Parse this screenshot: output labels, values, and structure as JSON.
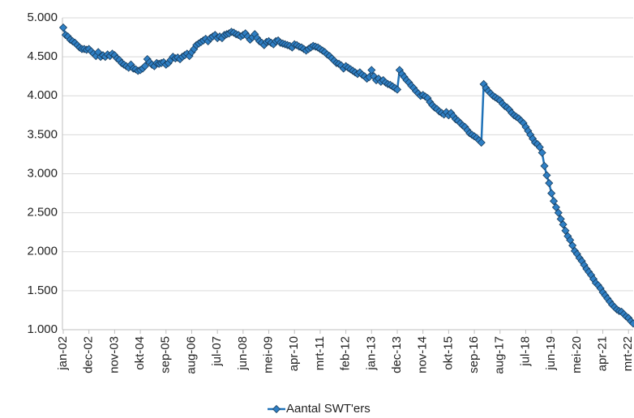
{
  "chart_data": {
    "type": "line",
    "categories": [
      "jan-02",
      null,
      null,
      null,
      null,
      null,
      null,
      null,
      null,
      null,
      null,
      "dec-02",
      null,
      null,
      null,
      null,
      null,
      null,
      null,
      null,
      null,
      null,
      "nov-03",
      null,
      null,
      null,
      null,
      null,
      null,
      null,
      null,
      null,
      null,
      "okt-04",
      null,
      null,
      null,
      null,
      null,
      null,
      null,
      null,
      null,
      null,
      "sep-05",
      null,
      null,
      null,
      null,
      null,
      null,
      null,
      null,
      null,
      null,
      "aug-06",
      null,
      null,
      null,
      null,
      null,
      null,
      null,
      null,
      null,
      null,
      "jul-07",
      null,
      null,
      null,
      null,
      null,
      null,
      null,
      null,
      null,
      null,
      "jun-08",
      null,
      null,
      null,
      null,
      null,
      null,
      null,
      null,
      null,
      null,
      "mei-09",
      null,
      null,
      null,
      null,
      null,
      null,
      null,
      null,
      null,
      null,
      "apr-10",
      null,
      null,
      null,
      null,
      null,
      null,
      null,
      null,
      null,
      null,
      "mrt-11",
      null,
      null,
      null,
      null,
      null,
      null,
      null,
      null,
      null,
      null,
      "feb-12",
      null,
      null,
      null,
      null,
      null,
      null,
      null,
      null,
      null,
      null,
      "jan-13",
      null,
      null,
      null,
      null,
      null,
      null,
      null,
      null,
      null,
      null,
      "dec-13",
      null,
      null,
      null,
      null,
      null,
      null,
      null,
      null,
      null,
      null,
      "nov-14",
      null,
      null,
      null,
      null,
      null,
      null,
      null,
      null,
      null,
      null,
      "okt-15",
      null,
      null,
      null,
      null,
      null,
      null,
      null,
      null,
      null,
      null,
      "sep-16",
      null,
      null,
      null,
      null,
      null,
      null,
      null,
      null,
      null,
      null,
      "aug-17",
      null,
      null,
      null,
      null,
      null,
      null,
      null,
      null,
      null,
      null,
      "jul-18",
      null,
      null,
      null,
      null,
      null,
      null,
      null,
      null,
      null,
      null,
      "jun-19",
      null,
      null,
      null,
      null,
      null,
      null,
      null,
      null,
      null,
      null,
      "mei-20",
      null,
      null,
      null,
      null,
      null,
      null,
      null,
      null,
      null,
      null,
      "apr-21",
      null,
      null,
      null,
      null,
      null,
      null,
      null,
      null,
      null,
      null,
      "mrt-22",
      null,
      null
    ],
    "series": [
      {
        "name": "Aantal SWT'ers",
        "color": "#1f72b8",
        "marker_color": "#2f7fc4",
        "values": [
          4875,
          4780,
          4760,
          4720,
          4700,
          4680,
          4650,
          4620,
          4600,
          4600,
          4590,
          4600,
          4570,
          4540,
          4510,
          4560,
          4500,
          4520,
          4500,
          4530,
          4510,
          4540,
          4520,
          4480,
          4460,
          4420,
          4400,
          4380,
          4360,
          4400,
          4350,
          4340,
          4320,
          4330,
          4350,
          4380,
          4470,
          4430,
          4400,
          4380,
          4420,
          4410,
          4420,
          4430,
          4400,
          4420,
          4460,
          4500,
          4480,
          4490,
          4470,
          4500,
          4520,
          4540,
          4510,
          4560,
          4600,
          4650,
          4670,
          4690,
          4710,
          4730,
          4700,
          4740,
          4760,
          4780,
          4740,
          4760,
          4740,
          4780,
          4790,
          4800,
          4820,
          4810,
          4790,
          4780,
          4760,
          4780,
          4800,
          4760,
          4720,
          4750,
          4790,
          4740,
          4700,
          4680,
          4650,
          4690,
          4700,
          4680,
          4660,
          4700,
          4710,
          4680,
          4670,
          4660,
          4650,
          4640,
          4620,
          4660,
          4650,
          4630,
          4620,
          4600,
          4580,
          4600,
          4620,
          4640,
          4630,
          4620,
          4600,
          4580,
          4560,
          4530,
          4510,
          4480,
          4450,
          4420,
          4410,
          4390,
          4350,
          4380,
          4360,
          4340,
          4320,
          4300,
          4280,
          4300,
          4270,
          4250,
          4220,
          4240,
          4330,
          4250,
          4200,
          4220,
          4180,
          4200,
          4170,
          4150,
          4140,
          4120,
          4100,
          4080,
          4330,
          4280,
          4240,
          4200,
          4170,
          4130,
          4100,
          4060,
          4030,
          4000,
          4010,
          3990,
          3970,
          3920,
          3880,
          3850,
          3830,
          3800,
          3780,
          3760,
          3790,
          3750,
          3780,
          3740,
          3700,
          3680,
          3650,
          3620,
          3600,
          3560,
          3520,
          3500,
          3480,
          3460,
          3430,
          3400,
          4150,
          4100,
          4060,
          4030,
          4000,
          3980,
          3960,
          3940,
          3900,
          3870,
          3850,
          3820,
          3780,
          3750,
          3730,
          3710,
          3680,
          3650,
          3600,
          3550,
          3500,
          3450,
          3400,
          3380,
          3340,
          3270,
          3100,
          2980,
          2880,
          2750,
          2650,
          2570,
          2500,
          2420,
          2350,
          2270,
          2200,
          2150,
          2080,
          2010,
          1970,
          1920,
          1880,
          1830,
          1780,
          1740,
          1700,
          1650,
          1600,
          1570,
          1530,
          1480,
          1440,
          1400,
          1360,
          1320,
          1290,
          1260,
          1240,
          1230,
          1200,
          1170,
          1150,
          1110,
          1080
        ]
      }
    ],
    "ylim": [
      1000,
      5000
    ],
    "yticks": [
      {
        "value": 1000,
        "label": "1.000"
      },
      {
        "value": 1500,
        "label": "1.500"
      },
      {
        "value": 2000,
        "label": "2.000"
      },
      {
        "value": 2500,
        "label": "2.500"
      },
      {
        "value": 3000,
        "label": "3.000"
      },
      {
        "value": 3500,
        "label": "3.500"
      },
      {
        "value": 4000,
        "label": "4.000"
      },
      {
        "value": 4500,
        "label": "4.500"
      },
      {
        "value": 5000,
        "label": "5.000"
      }
    ],
    "grid": true,
    "legend": "bottom"
  }
}
